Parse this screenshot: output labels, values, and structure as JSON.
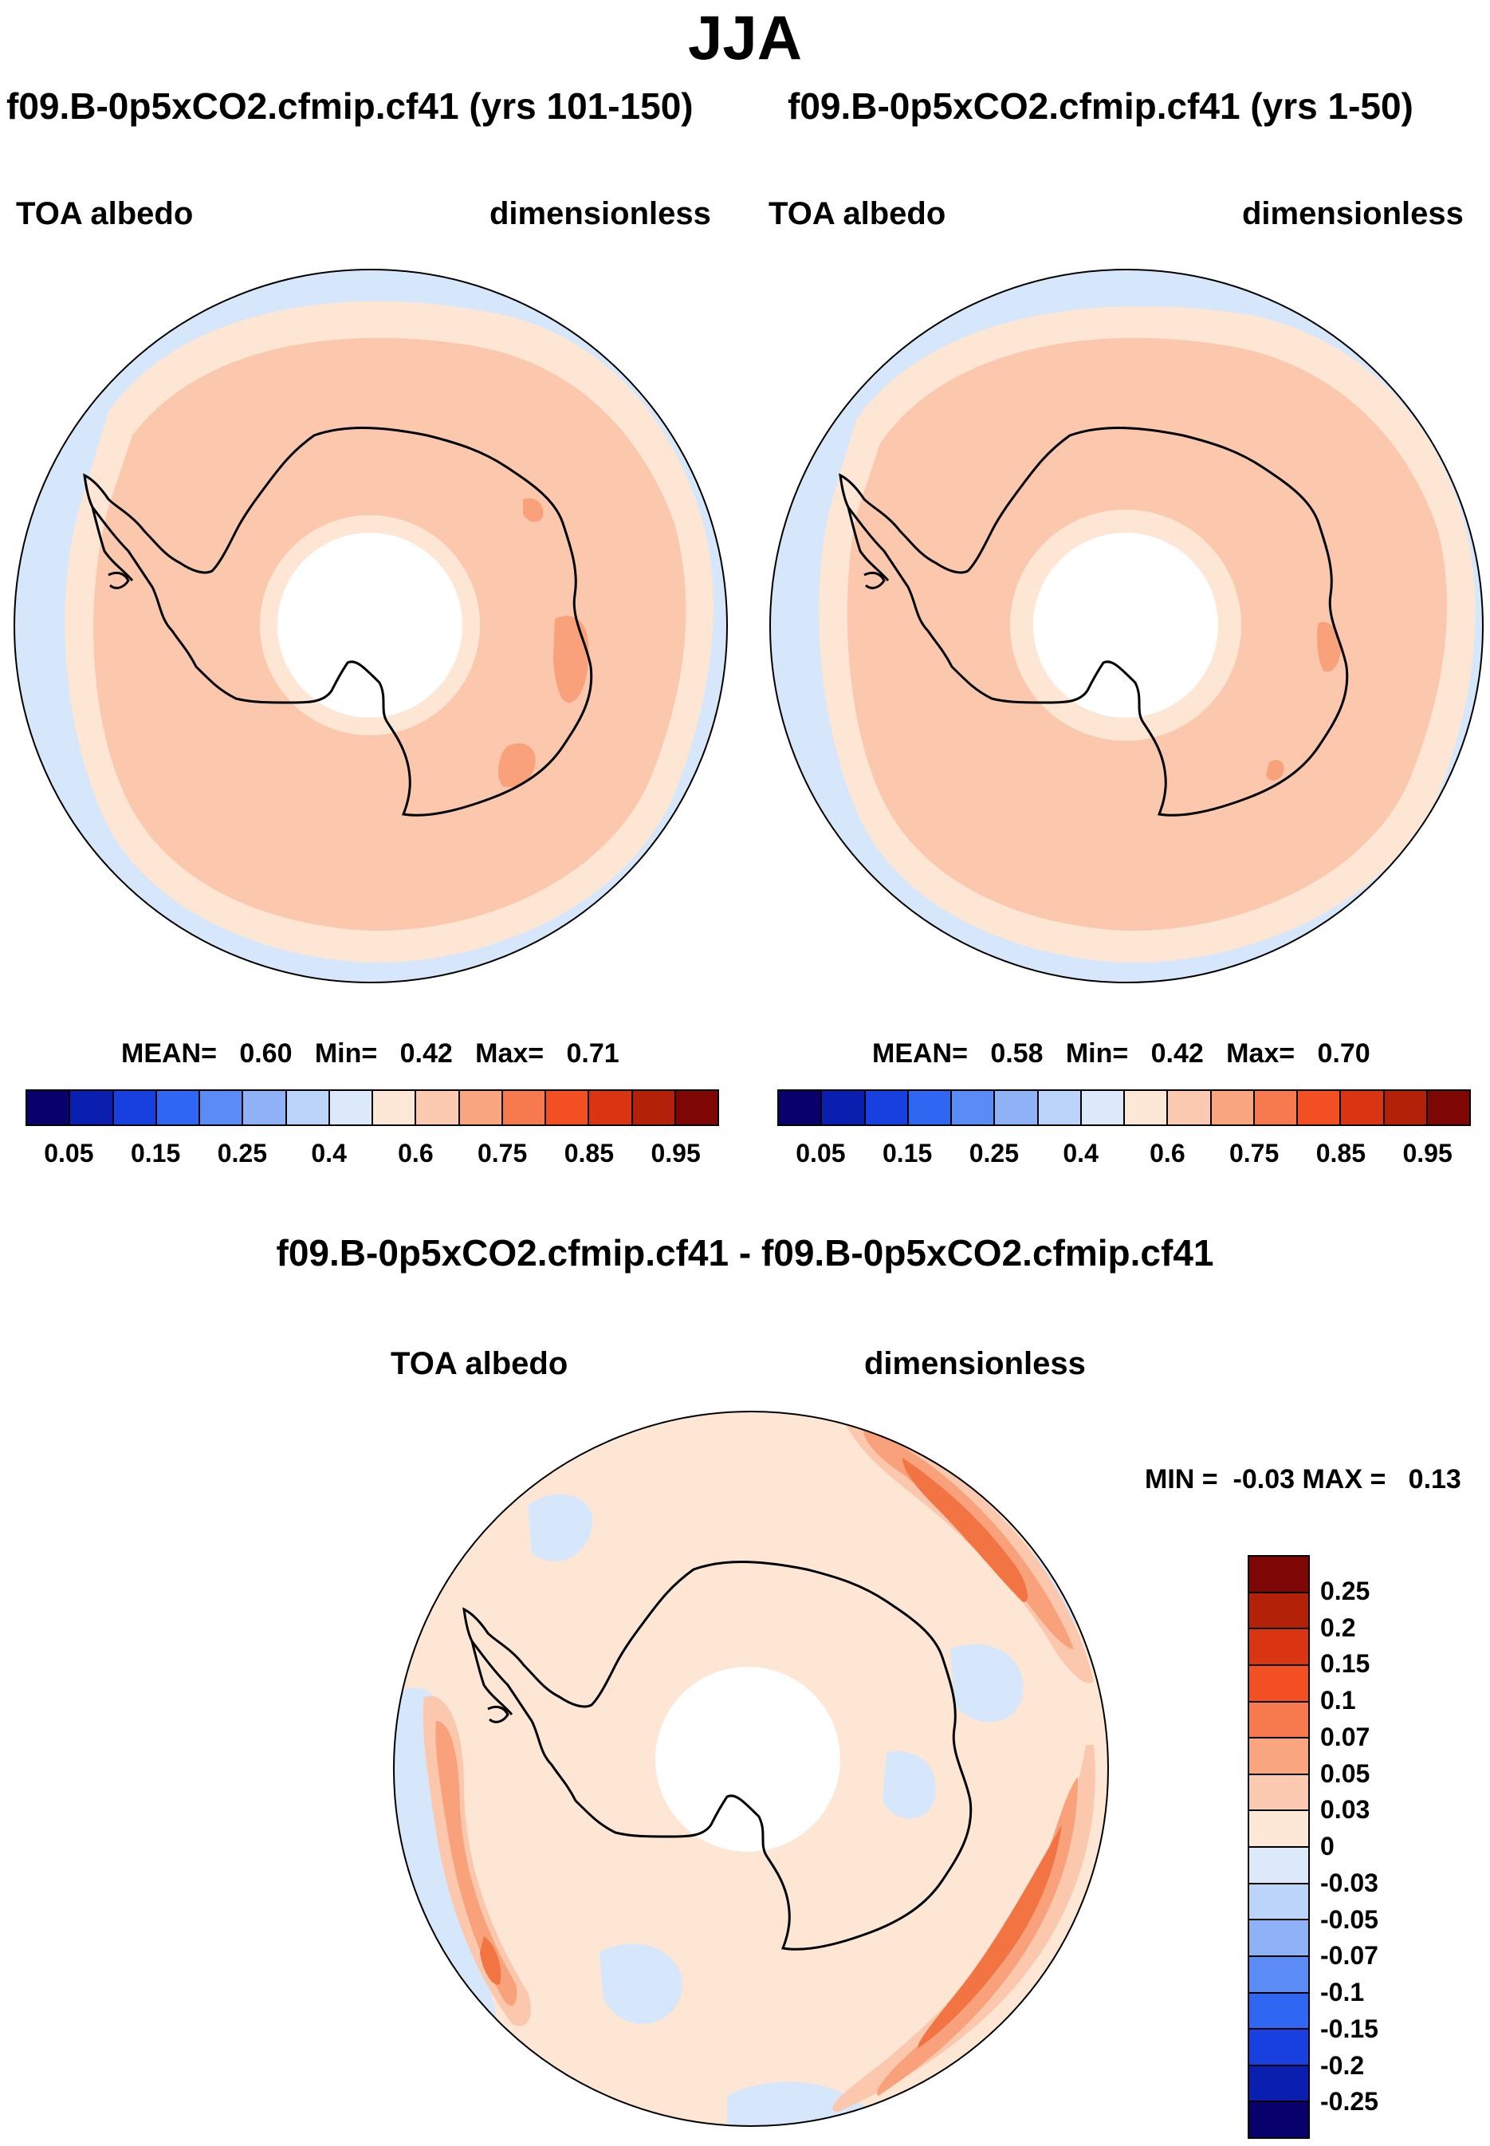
{
  "main_title": "JJA",
  "panel_left": {
    "title": "f09.B-0p5xCO2.cfmip.cf41 (yrs 101-150)",
    "variable": "TOA albedo",
    "units": "dimensionless",
    "stats": {
      "mean_label": "MEAN=",
      "mean": "0.60",
      "min_label": "Min=",
      "min": "0.42",
      "max_label": "Max=",
      "max": "0.71"
    }
  },
  "panel_right": {
    "title": "f09.B-0p5xCO2.cfmip.cf41 (yrs 1-50)",
    "variable": "TOA albedo",
    "units": "dimensionless",
    "stats": {
      "mean_label": "MEAN=",
      "mean": "0.58",
      "min_label": "Min=",
      "min": "0.42",
      "max_label": "Max=",
      "max": "0.70"
    }
  },
  "top_colorbar": {
    "labels": [
      "0.05",
      "0.15",
      "0.25",
      "0.4",
      "0.6",
      "0.75",
      "0.85",
      "0.95"
    ],
    "colors": [
      "#08006b",
      "#0a1fb0",
      "#1840e0",
      "#2f67f2",
      "#5b8cf5",
      "#8fb2f7",
      "#bcd3fa",
      "#dce9fb",
      "#fde8d8",
      "#fccab0",
      "#f9a57f",
      "#f77a4e",
      "#f25022",
      "#d93512",
      "#b32208",
      "#7e0604"
    ]
  },
  "diff_panel": {
    "title": "f09.B-0p5xCO2.cfmip.cf41 - f09.B-0p5xCO2.cfmip.cf41",
    "variable": "TOA albedo",
    "units": "dimensionless",
    "minmax": "MIN =  -0.03 MAX =   0.13"
  },
  "diff_colorbar": {
    "labels": [
      "0.25",
      "0.2",
      "0.15",
      "0.1",
      "0.07",
      "0.05",
      "0.03",
      "0",
      "-0.03",
      "-0.05",
      "-0.07",
      "-0.1",
      "-0.15",
      "-0.2",
      "-0.25"
    ],
    "colors": [
      "#7e0604",
      "#b32208",
      "#d93512",
      "#f25022",
      "#f77a4e",
      "#f9a57f",
      "#fccab0",
      "#fde8d8",
      "#dce9fb",
      "#bcd3fa",
      "#8fb2f7",
      "#5b8cf5",
      "#2f67f2",
      "#1840e0",
      "#0a1fb0",
      "#08006b"
    ]
  },
  "map_colors": {
    "ocean_low": "#d6e7fb",
    "band_light": "#fde6d4",
    "band_main": "#fbc8ad",
    "band_strong": "#f8a17b",
    "band_peak": "#f27443",
    "pole_hole": "#ffffff",
    "coast": "#000000"
  }
}
